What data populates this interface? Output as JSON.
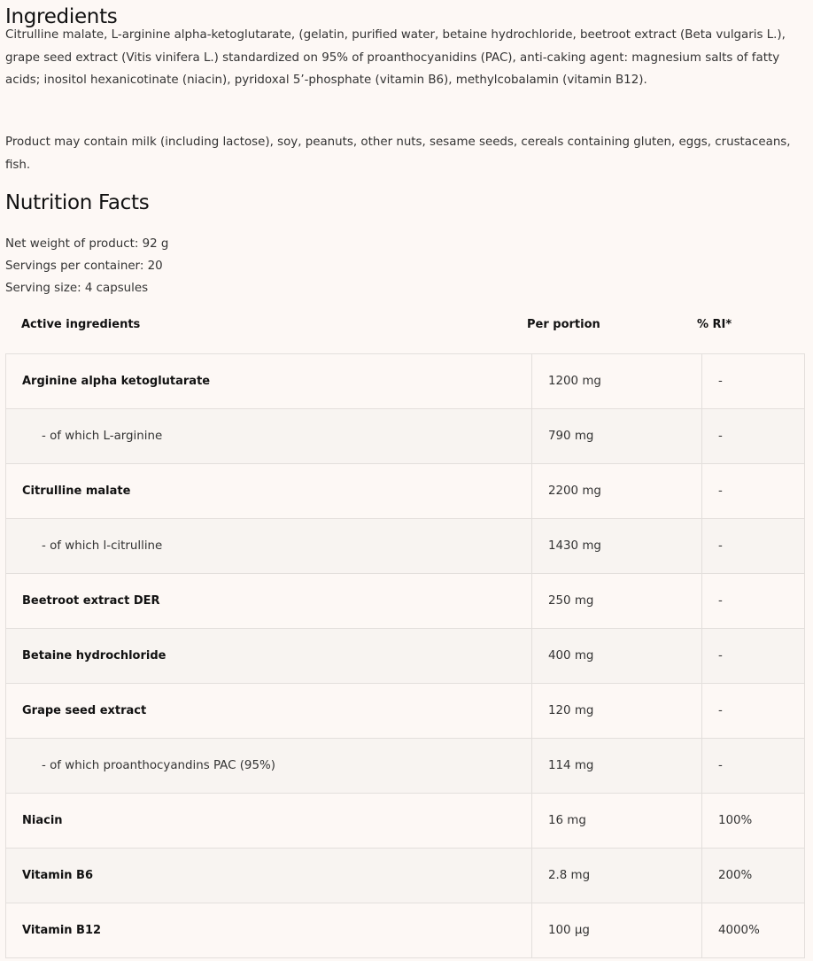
{
  "ingredients": {
    "title": "Ingredients",
    "text": "Citrulline malate, L-arginine alpha-ketoglutarate, (gelatin, purified water, betaine hydrochloride, beetroot extract (Beta vulgaris L.), grape seed extract (Vitis vinifera L.) standardized on 95% of proanthocyanidins (PAC), anti-caking agent: magnesium salts of fatty acids; inositol hexanicotinate (niacin), pyridoxal 5’-phosphate (vitamin B6), methylcobalamin (vitamin B12).",
    "allergens": "Product may contain milk (including lactose), soy, peanuts, other nuts, sesame seeds, cereals containing gluten, eggs, crustaceans, fish."
  },
  "nutrition": {
    "title": "Nutrition Facts",
    "net_weight": "Net weight of product: 92 g",
    "servings": "Servings per container: 20",
    "serving_size": "Serving size: 4 capsules",
    "headers": [
      "Active ingredients",
      "Per portion",
      "% RI*"
    ],
    "rows": [
      {
        "name": "Arginine alpha ketoglutarate",
        "amount": "1200 mg",
        "ri": "-",
        "sub": false
      },
      {
        "name": "- of which L-arginine",
        "amount": "790 mg",
        "ri": "-",
        "sub": true
      },
      {
        "name": "Citrulline malate",
        "amount": "2200 mg",
        "ri": "-",
        "sub": false
      },
      {
        "name": "- of which l-citrulline",
        "amount": "1430 mg",
        "ri": "-",
        "sub": true
      },
      {
        "name": "Beetroot extract DER",
        "amount": "250 mg",
        "ri": "-",
        "sub": false
      },
      {
        "name": "Betaine hydrochloride",
        "amount": "400 mg",
        "ri": "-",
        "sub": false
      },
      {
        "name": "Grape seed extract",
        "amount": "120 mg",
        "ri": "-",
        "sub": false
      },
      {
        "name": "- of which proanthocyandins PAC (95%)",
        "amount": "114 mg",
        "ri": "-",
        "sub": true
      },
      {
        "name": "Niacin",
        "amount": "16 mg",
        "ri": "100%",
        "sub": false
      },
      {
        "name": "Vitamin B6",
        "amount": "2.8 mg",
        "ri": "200%",
        "sub": false
      },
      {
        "name": "Vitamin B12",
        "amount": "100 µg",
        "ri": "4000%",
        "sub": false
      }
    ]
  }
}
